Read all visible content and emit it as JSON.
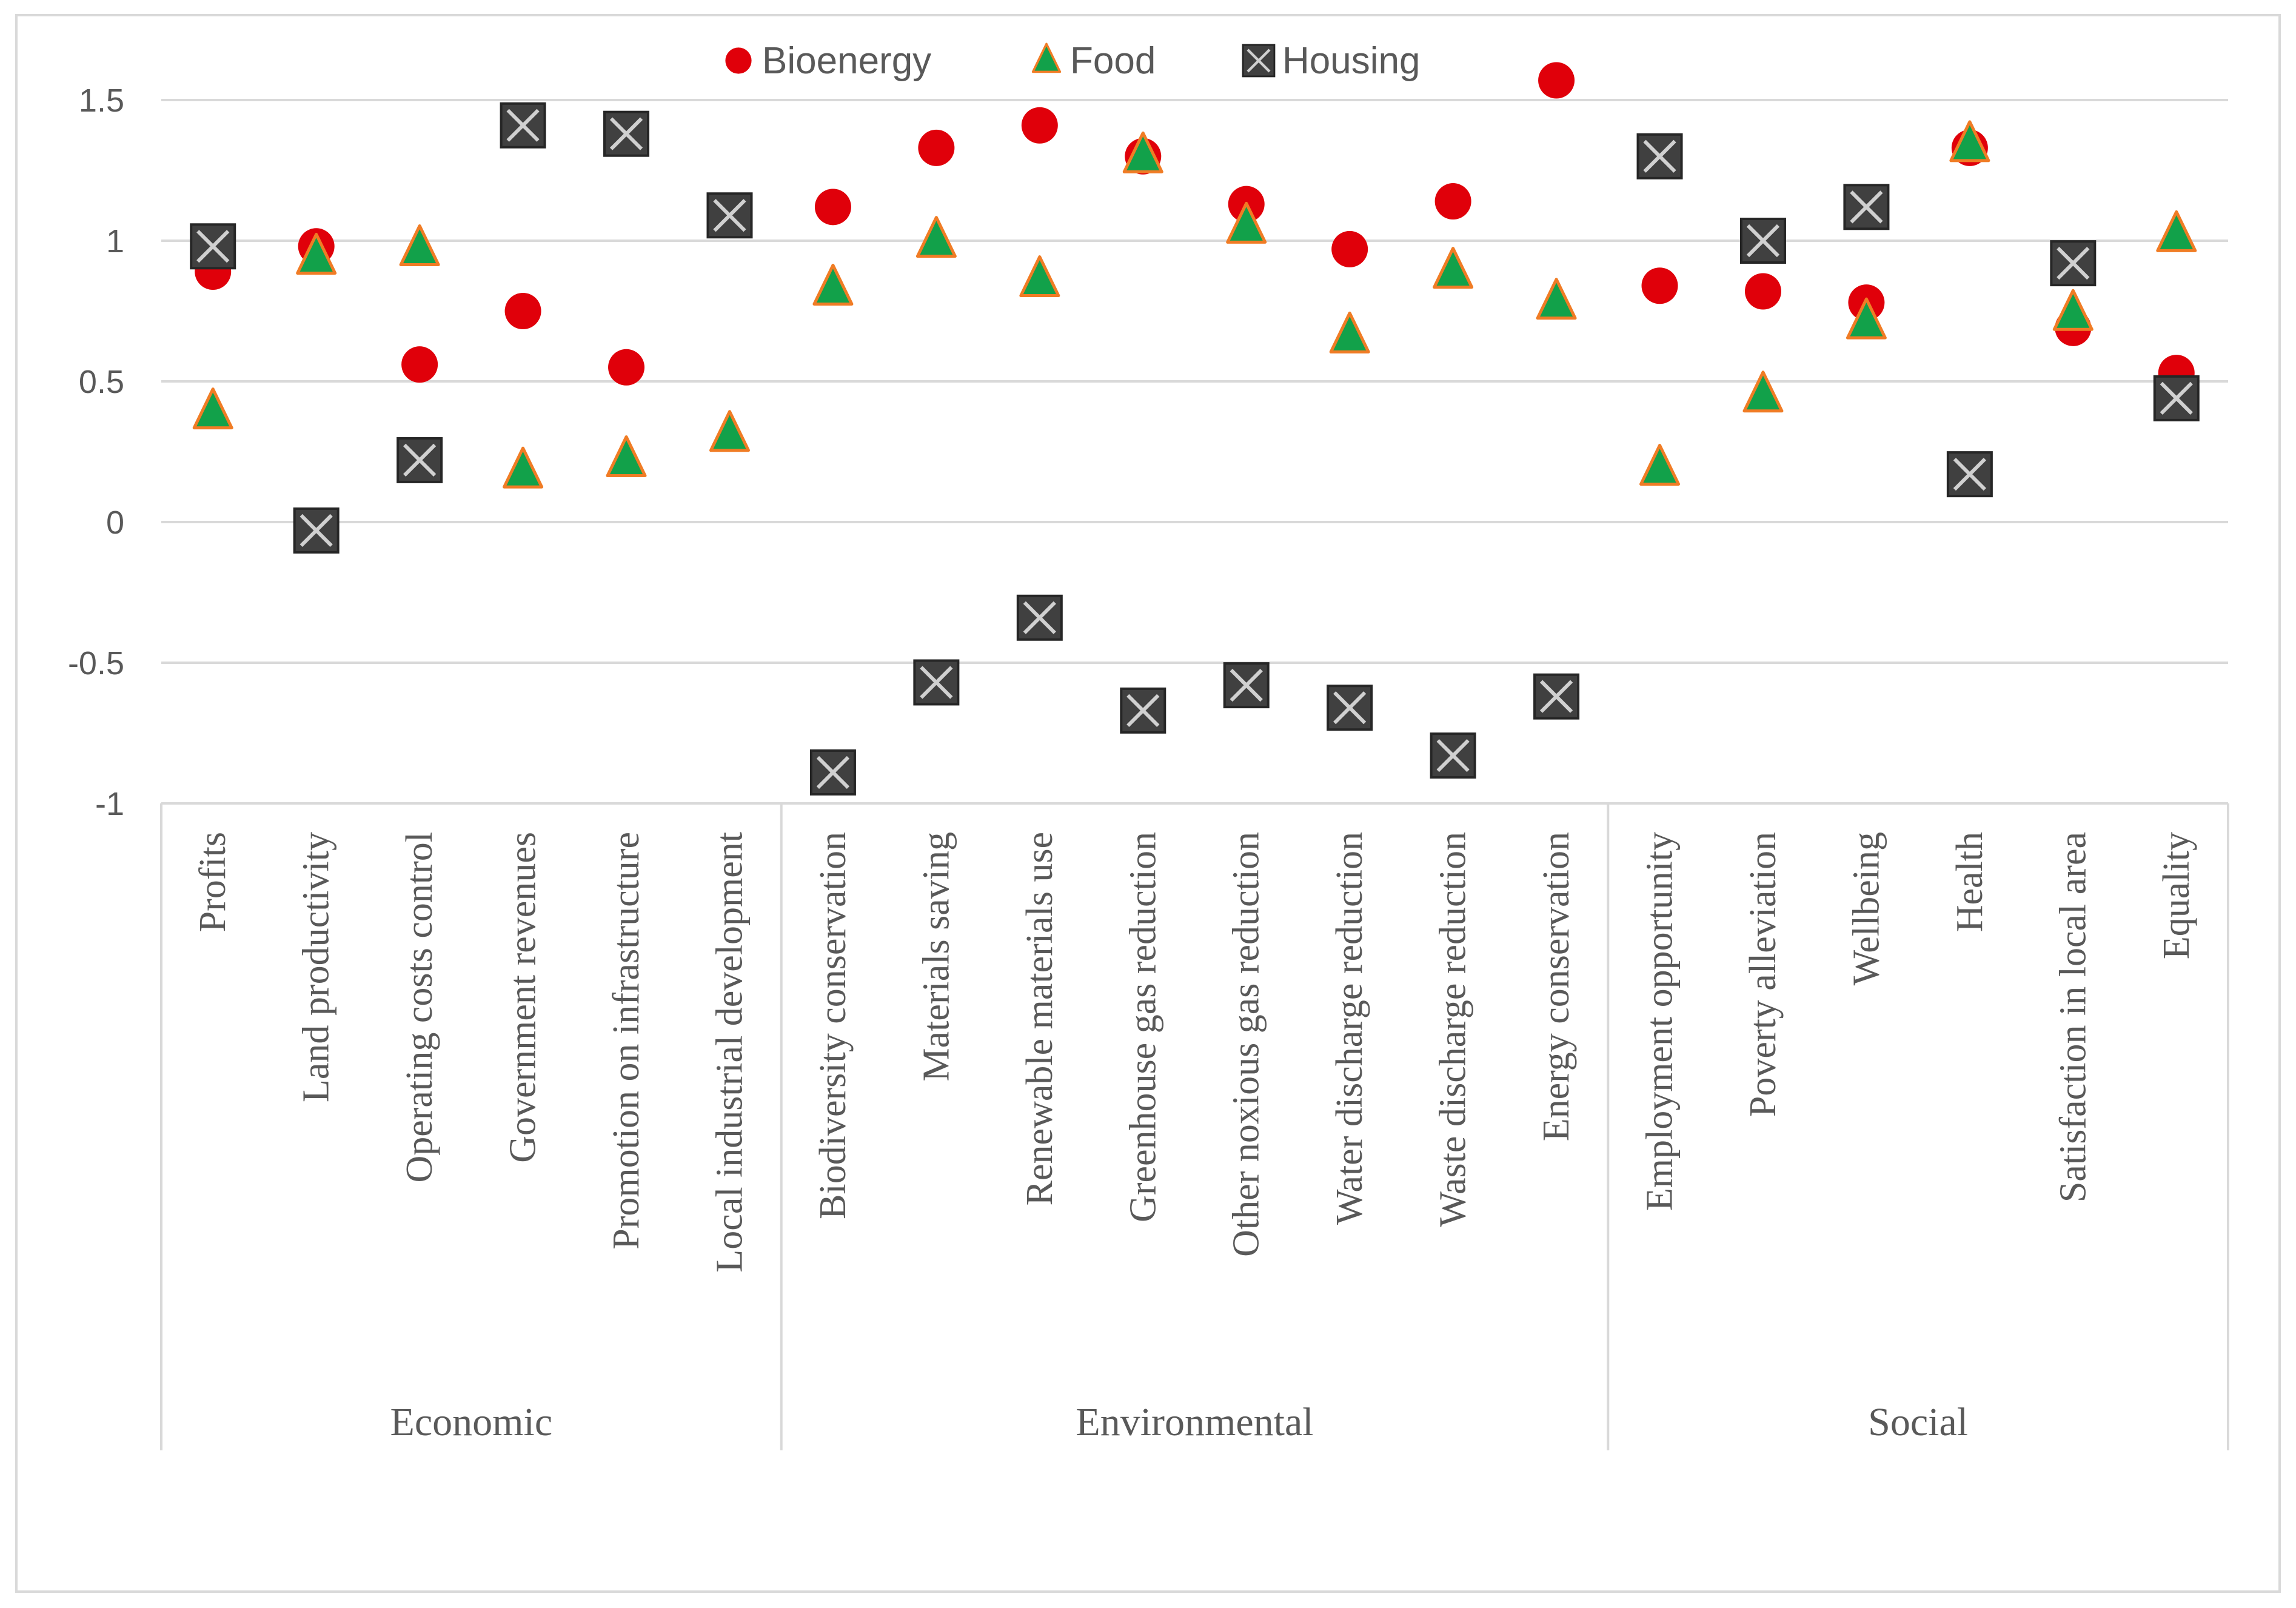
{
  "chart_data": {
    "type": "scatter",
    "title": "",
    "xlabel": "",
    "ylabel": "",
    "ylim": [
      -1,
      1.5
    ],
    "yticks": [
      "1.5",
      "1",
      "0.5",
      "0",
      "-0.5",
      "-1"
    ],
    "grid": true,
    "legend_position": "top-center",
    "groups": [
      {
        "name": "Economic",
        "count": 6
      },
      {
        "name": "Environmental",
        "count": 8
      },
      {
        "name": "Social",
        "count": 6
      }
    ],
    "categories": [
      "Profits",
      "Land productivity",
      "Operating costs control",
      "Government revenues",
      "Promotion on infrastructure",
      "Local industrial development",
      "Biodiversity conservation",
      "Materials saving",
      "Renewable materials use",
      "Greenhouse gas reduction",
      "Other noxious gas reduction",
      "Water discharge reduction",
      "Waste discharge reduction",
      "Energy conservation",
      "Employment opportunity",
      "Poverty alleviation",
      "Wellbeing",
      "Health",
      "Satisfaction in local area",
      "Equality"
    ],
    "series": [
      {
        "name": "Bioenergy",
        "marker": "circle",
        "color": "#e0000a",
        "values": [
          0.89,
          0.98,
          0.56,
          0.75,
          0.55,
          1.08,
          1.12,
          1.33,
          1.41,
          1.3,
          1.13,
          0.97,
          1.14,
          1.57,
          0.84,
          0.82,
          0.78,
          1.33,
          0.69,
          0.53
        ]
      },
      {
        "name": "Food",
        "marker": "triangle",
        "color": "#12a14a",
        "edge_color": "#f07c25",
        "values": [
          0.39,
          0.94,
          0.97,
          0.18,
          0.22,
          0.31,
          0.83,
          1.0,
          0.86,
          1.3,
          1.05,
          0.66,
          0.89,
          0.78,
          0.19,
          0.45,
          0.71,
          1.34,
          0.74,
          1.02
        ]
      },
      {
        "name": "Housing",
        "marker": "box-x",
        "color": "#404040",
        "values": [
          0.98,
          -0.03,
          0.22,
          1.41,
          1.38,
          1.09,
          -0.89,
          -0.57,
          -0.34,
          -0.67,
          -0.58,
          -0.66,
          -0.83,
          -0.62,
          1.3,
          1.0,
          1.12,
          0.17,
          0.92,
          0.44
        ]
      }
    ]
  }
}
